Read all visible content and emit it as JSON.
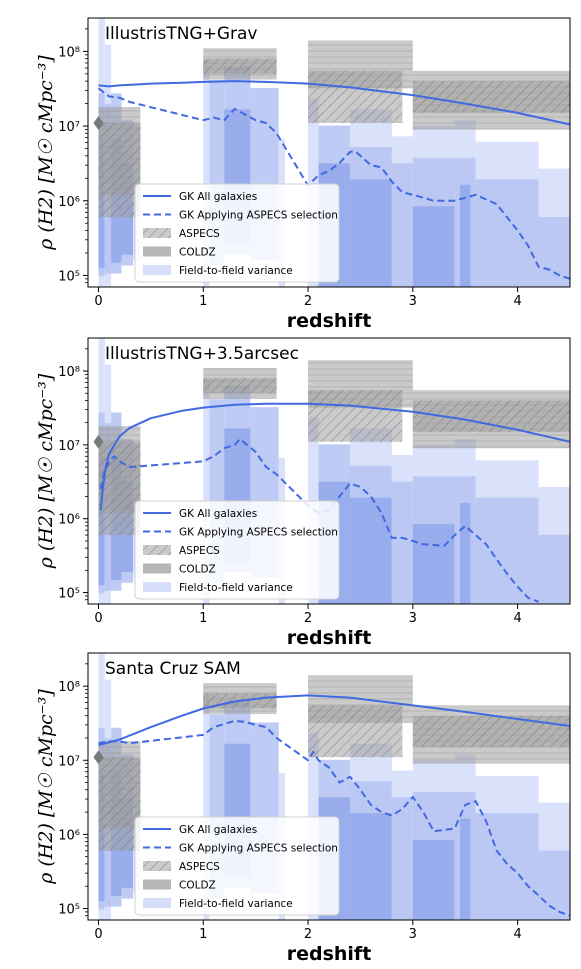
{
  "chart_data": [
    {
      "type": "line",
      "title": "IllustrisTNG+Grav",
      "xlabel": "redshift",
      "ylabel": "ρ (H2) [M☉ cMpc⁻³]",
      "xlim": [
        -0.1,
        4.5
      ],
      "ylim": [
        70000,
        280000000
      ],
      "yscale": "log",
      "xticks": [
        "0",
        "1",
        "2",
        "3",
        "4"
      ],
      "yticks": [
        "10⁵",
        "10⁶",
        "10⁷",
        "10⁸"
      ],
      "legend": [
        "GK All galaxies",
        "GK Applying ASPECS selection",
        "ASPECS",
        "COLDZ",
        "Field-to-field variance"
      ],
      "series": [
        {
          "name": "GK All galaxies",
          "style": "solid",
          "x": [
            0,
            0.1,
            0.2,
            0.5,
            0.8,
            1.0,
            1.3,
            1.6,
            2.0,
            2.4,
            3.0,
            3.5,
            4.0,
            4.5
          ],
          "y": [
            35000000.0,
            34000000.0,
            35000000.0,
            37000000.0,
            38000000.0,
            39000000.0,
            40000000.0,
            39000000.0,
            37000000.0,
            33000000.0,
            26000000.0,
            20000000.0,
            15000000.0,
            10500000.0
          ]
        },
        {
          "name": "GK Applying ASPECS selection",
          "style": "dashed",
          "x": [
            0,
            0.1,
            0.2,
            0.3,
            1.0,
            1.1,
            1.2,
            1.3,
            1.5,
            1.6,
            1.7,
            2.0,
            2.1,
            2.2,
            2.3,
            2.4,
            2.45,
            2.5,
            2.6,
            2.7,
            2.8,
            2.9,
            3.0,
            3.1,
            3.2,
            3.4,
            3.6,
            3.8,
            3.9,
            4.0,
            4.1,
            4.2,
            4.3,
            4.4,
            4.5
          ],
          "y": [
            32000000.0,
            25000000.0,
            24000000.0,
            21000000.0,
            12000000.0,
            13000000.0,
            12000000.0,
            17000000.0,
            12000000.0,
            11000000.0,
            8000000.0,
            1600000.0,
            2200000.0,
            2500000.0,
            3200000.0,
            4500000.0,
            4600000.0,
            4000000.0,
            3000000.0,
            2800000.0,
            1800000.0,
            1300000.0,
            1200000.0,
            1100000.0,
            1000000.0,
            1000000.0,
            1200000.0,
            900000.0,
            600000.0,
            400000.0,
            250000.0,
            130000.0,
            120000.0,
            100000.0,
            90000.0
          ]
        }
      ],
      "marker": {
        "x": 0,
        "y": 11000000.0
      }
    },
    {
      "type": "line",
      "title": "IllustrisTNG+3.5arcsec",
      "xlabel": "redshift",
      "ylabel": "ρ (H2) [M☉ cMpc⁻³]",
      "xlim": [
        -0.1,
        4.5
      ],
      "ylim": [
        70000,
        280000000
      ],
      "yscale": "log",
      "xticks": [
        "0",
        "1",
        "2",
        "3",
        "4"
      ],
      "yticks": [
        "10⁵",
        "10⁶",
        "10⁷",
        "10⁸"
      ],
      "legend": [
        "GK All galaxies",
        "GK Applying ASPECS selection",
        "ASPECS",
        "COLDZ",
        "Field-to-field variance"
      ],
      "series": [
        {
          "name": "GK All galaxies",
          "style": "solid",
          "x": [
            0.02,
            0.04,
            0.07,
            0.1,
            0.2,
            0.3,
            0.5,
            0.8,
            1.0,
            1.3,
            1.6,
            2.0,
            2.4,
            3.0,
            3.5,
            4.0,
            4.5
          ],
          "y": [
            1300000.0,
            2500000.0,
            5000000.0,
            7500000.0,
            13000000.0,
            17000000.0,
            23000000.0,
            29000000.0,
            32000000.0,
            35000000.0,
            36000000.0,
            36000000.0,
            34000000.0,
            28000000.0,
            22000000.0,
            16000000.0,
            11000000.0
          ]
        },
        {
          "name": "GK Applying ASPECS selection",
          "style": "dashed",
          "x": [
            0.02,
            0.05,
            0.1,
            0.15,
            0.2,
            0.3,
            1.0,
            1.1,
            1.2,
            1.3,
            1.35,
            1.5,
            1.6,
            1.7,
            2.0,
            2.1,
            2.2,
            2.3,
            2.4,
            2.5,
            2.6,
            2.7,
            2.8,
            2.9,
            3.0,
            3.1,
            3.3,
            3.4,
            3.5,
            3.6,
            3.7,
            3.8,
            3.9,
            4.0,
            4.1,
            4.2
          ],
          "y": [
            2500000.0,
            4000000.0,
            6000000.0,
            7000000.0,
            6000000.0,
            5000000.0,
            6000000.0,
            7000000.0,
            9000000.0,
            10000000.0,
            12000000.0,
            8000000.0,
            5000000.0,
            4000000.0,
            1500000.0,
            1200000.0,
            1300000.0,
            2000000.0,
            3000000.0,
            2700000.0,
            2000000.0,
            1200000.0,
            550000.0,
            550000.0,
            500000.0,
            450000.0,
            430000.0,
            600000.0,
            800000.0,
            600000.0,
            450000.0,
            280000.0,
            180000.0,
            120000.0,
            85000.0,
            75000.0
          ]
        }
      ],
      "marker": {
        "x": 0,
        "y": 11000000.0
      }
    },
    {
      "type": "line",
      "title": "Santa Cruz SAM",
      "xlabel": "redshift",
      "ylabel": "ρ (H2) [M☉ cMpc⁻³]",
      "xlim": [
        -0.1,
        4.5
      ],
      "ylim": [
        70000,
        280000000
      ],
      "yscale": "log",
      "xticks": [
        "0",
        "1",
        "2",
        "3",
        "4"
      ],
      "yticks": [
        "10⁵",
        "10⁶",
        "10⁷",
        "10⁸"
      ],
      "legend": [
        "GK All galaxies",
        "GK Applying ASPECS selection",
        "ASPECS",
        "COLDZ",
        "Field-to-field variance"
      ],
      "series": [
        {
          "name": "GK All galaxies",
          "style": "solid",
          "x": [
            0,
            0.2,
            0.5,
            0.8,
            1.0,
            1.3,
            1.6,
            2.0,
            2.4,
            3.0,
            3.5,
            4.0,
            4.5
          ],
          "y": [
            16000000.0,
            19000000.0,
            28000000.0,
            40000000.0,
            50000000.0,
            62000000.0,
            70000000.0,
            75000000.0,
            70000000.0,
            55000000.0,
            45000000.0,
            36000000.0,
            29000000.0
          ]
        },
        {
          "name": "GK Applying ASPECS selection",
          "style": "dashed",
          "x": [
            0,
            0.1,
            0.2,
            0.3,
            1.0,
            1.1,
            1.3,
            1.4,
            1.5,
            1.6,
            1.7,
            2.0,
            2.05,
            2.1,
            2.2,
            2.3,
            2.4,
            2.5,
            2.6,
            2.7,
            2.8,
            2.9,
            3.0,
            3.1,
            3.2,
            3.4,
            3.5,
            3.6,
            3.7,
            3.8,
            3.9,
            4.0,
            4.1,
            4.2,
            4.3,
            4.4,
            4.5
          ],
          "y": [
            17000000.0,
            18000000.0,
            18000000.0,
            17000000.0,
            22000000.0,
            28000000.0,
            34000000.0,
            33000000.0,
            30000000.0,
            28000000.0,
            20000000.0,
            10000000.0,
            13000000.0,
            10000000.0,
            8000000.0,
            5000000.0,
            6000000.0,
            4000000.0,
            2500000.0,
            2000000.0,
            1800000.0,
            2200000.0,
            3200000.0,
            2000000.0,
            1100000.0,
            1200000.0,
            2500000.0,
            2800000.0,
            1500000.0,
            600000.0,
            400000.0,
            300000.0,
            200000.0,
            150000.0,
            110000.0,
            90000.0,
            80000.0
          ]
        }
      ],
      "marker": {
        "x": 0,
        "y": 11000000.0
      }
    }
  ],
  "colors": {
    "line": "#4169e1",
    "band_light": "#d6def9",
    "band_mid": "#b7c5f3",
    "band_dark": "#95aaec",
    "box": "#9e9e9e",
    "marker": "#7a7a7a"
  }
}
